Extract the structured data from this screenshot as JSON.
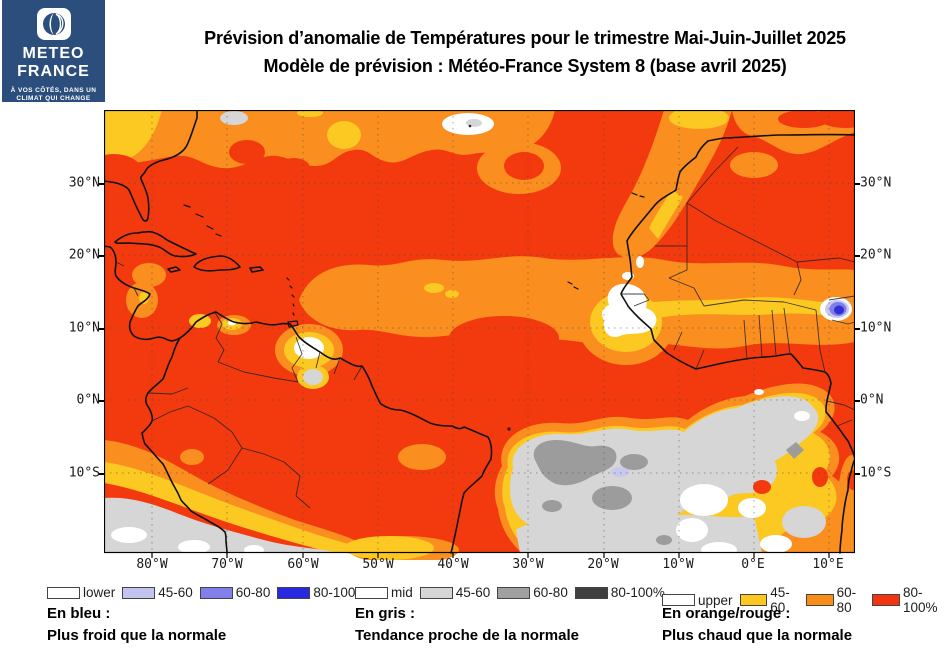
{
  "logo": {
    "bg_color": "#2b4e7d",
    "brand_line1": "METEO",
    "brand_line2": "FRANCE",
    "tagline_line1": "À VOS CÔTÉS, DANS UN",
    "tagline_line2": "CLIMAT QUI CHANGE"
  },
  "header": {
    "title_line1": "Prévision d’anomalie de Températures pour le trimestre Mai-Juin-Juillet 2025",
    "title_line2": "Modèle de prévision : Météo-France System 8 (base avril 2025)"
  },
  "map": {
    "lat_labels": [
      "30°N",
      "20°N",
      "10°N",
      "0°N",
      "10°S"
    ],
    "lon_labels": [
      "80°W",
      "70°W",
      "60°W",
      "50°W",
      "40°W",
      "30°W",
      "20°W",
      "10°W",
      "0°E",
      "10°E"
    ],
    "colors": {
      "red": "#f23a0e",
      "orange": "#fa8e1f",
      "yellow": "#fcc822",
      "light_gray": "#d6d6d6",
      "mid_gray": "#9c9c9c",
      "lavender": "#c9c9f0",
      "blue_mid": "#7f7fe6",
      "blue_dark": "#2f2fd6",
      "coast": "#111111"
    }
  },
  "legends": [
    {
      "id": "blue",
      "swatches": [
        {
          "label": "lower",
          "color": "#ffffff"
        },
        {
          "label": "45-60",
          "color": "#c3c3ef"
        },
        {
          "label": "60-80",
          "color": "#8080e8"
        },
        {
          "label": "80-100%",
          "color": "#2929e0"
        }
      ],
      "caption_line1": "En bleu :",
      "caption_line2": "Plus froid que la normale"
    },
    {
      "id": "gray",
      "swatches": [
        {
          "label": "mid",
          "color": "#ffffff"
        },
        {
          "label": "45-60",
          "color": "#d6d6d6"
        },
        {
          "label": "60-80",
          "color": "#a0a0a0"
        },
        {
          "label": "80-100%",
          "color": "#3f3f3f"
        }
      ],
      "caption_line1": "En gris :",
      "caption_line2": "Tendance proche de la normale"
    },
    {
      "id": "orange",
      "swatches": [
        {
          "label": "upper",
          "color": "#ffffff"
        },
        {
          "label": "45-60",
          "color": "#fcc820"
        },
        {
          "label": "60-80",
          "color": "#fa8c19"
        },
        {
          "label": "80-100%",
          "color": "#f03510"
        }
      ],
      "caption_line1": "En orange/rouge :",
      "caption_line2": "Plus chaud que la normale"
    }
  ]
}
